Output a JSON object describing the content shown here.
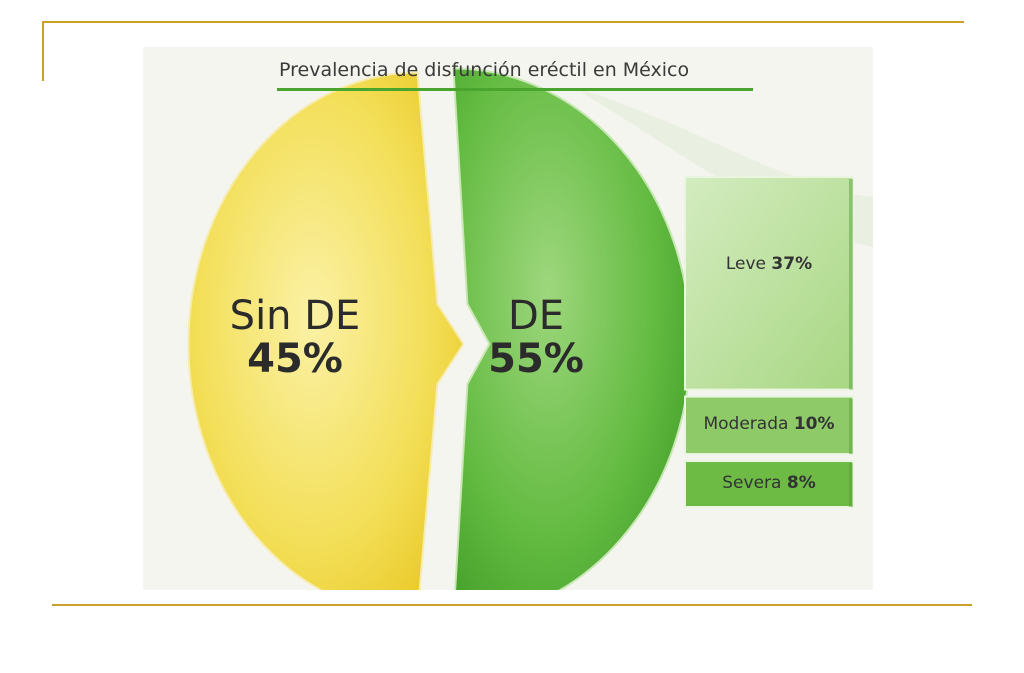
{
  "chart_data": [
    {
      "type": "pie",
      "title": "Prevalencia de disfunción eréctil en México",
      "categories": [
        "Sin DE",
        "DE"
      ],
      "values": [
        45,
        55
      ],
      "value_labels": [
        "45%",
        "55%"
      ],
      "colors": [
        "#f2dc4e",
        "#5cb53a"
      ]
    },
    {
      "type": "bar",
      "orientation": "stacked-vertical",
      "categories": [
        "Leve",
        "Moderada",
        "Severa"
      ],
      "values": [
        37,
        10,
        8
      ],
      "value_labels": [
        "37%",
        "10%",
        "8%"
      ],
      "colors": [
        "#b9df9a",
        "#8ecb68",
        "#6dbb45"
      ]
    }
  ],
  "colors": {
    "frame_accent": "#c9a227",
    "title_rule": "#4aa52e",
    "panel_background": "#f4f5ef"
  }
}
